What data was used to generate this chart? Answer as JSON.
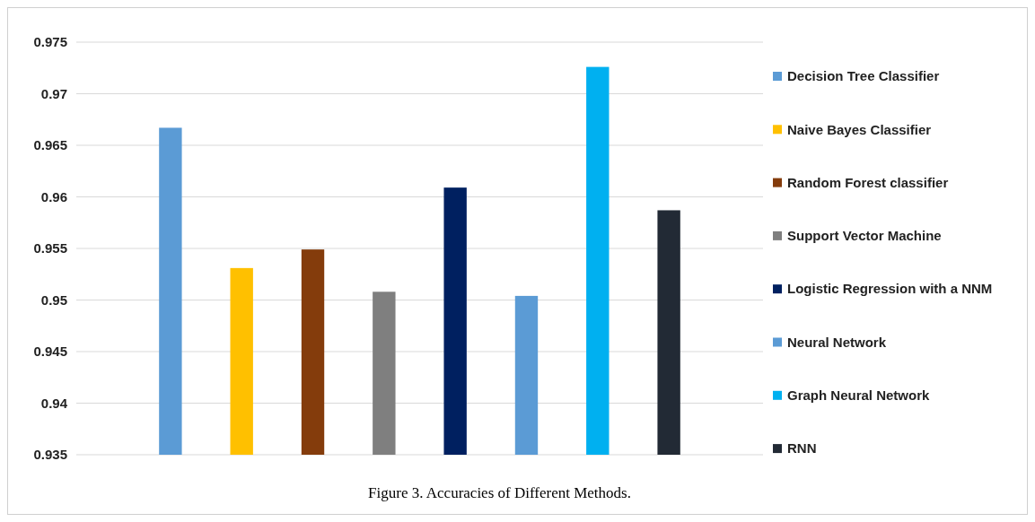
{
  "chart_data": {
    "type": "bar",
    "title": "Figure 3. Accuracies of Different Methods.",
    "categories": [
      null
    ],
    "series": [
      {
        "name": "Decision Tree Classifier",
        "color": "#5b9bd5",
        "values": [
          0.9667
        ]
      },
      {
        "name": "Naive Bayes Classifier",
        "color": "#ffc000",
        "values": [
          0.9531
        ]
      },
      {
        "name": "Random Forest classifier",
        "color": "#843c0c",
        "values": [
          0.9549
        ]
      },
      {
        "name": "Support Vector Machine",
        "color": "#7f7f7f",
        "values": [
          0.9508
        ]
      },
      {
        "name": "Logistic Regression with a NNM",
        "color": "#002060",
        "values": [
          0.9609
        ]
      },
      {
        "name": "Neural Network",
        "color": "#5b9bd5",
        "values": [
          0.9504
        ]
      },
      {
        "name": "Graph Neural Network",
        "color": "#00b0f0",
        "values": [
          0.9726
        ]
      },
      {
        "name": "RNN",
        "color": "#222a35",
        "values": [
          0.9587
        ]
      }
    ],
    "ylim": [
      0.935,
      0.975
    ],
    "yticks": [
      0.935,
      0.94,
      0.945,
      0.95,
      0.955,
      0.96,
      0.965,
      0.97,
      0.975
    ],
    "grid": "y",
    "legend": "right"
  }
}
